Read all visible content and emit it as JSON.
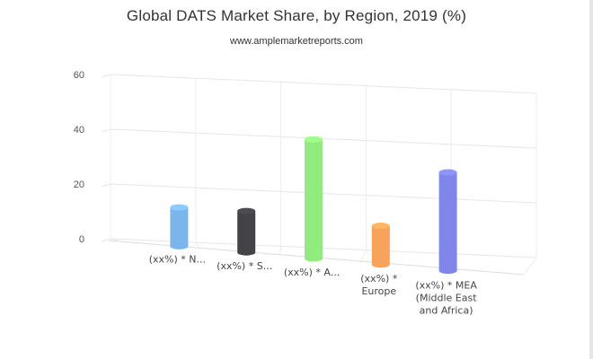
{
  "title": "Global DATS Market Share, by Region, 2019 (%)",
  "subtitle": "www.amplemarketreports.com",
  "chart_data": {
    "type": "bar",
    "subtype": "3d-cylinder",
    "title": "Global DATS Market Share, by Region, 2019 (%)",
    "subtitle": "www.amplemarketreports.com",
    "categories": [
      [
        "(xx%) * N..."
      ],
      [
        "(xx%) * S..."
      ],
      [
        "(xx%) * A..."
      ],
      [
        "(xx%) *",
        "Europe"
      ],
      [
        "(xx%) * MEA",
        "(Middle East",
        "and Africa)"
      ]
    ],
    "values": [
      15,
      16,
      46,
      15,
      38
    ],
    "colors": [
      "#7cb5ec",
      "#434348",
      "#90ed7d",
      "#f7a35c",
      "#8085e9"
    ],
    "yticks": [
      0,
      20,
      40,
      60
    ],
    "ylim": [
      0,
      60
    ],
    "grid": true,
    "legend": "none"
  }
}
